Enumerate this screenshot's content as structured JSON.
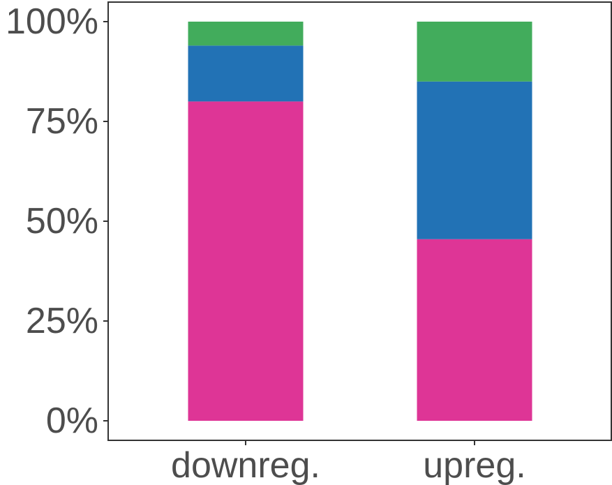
{
  "chart_data": {
    "type": "bar",
    "stacked": true,
    "title": "",
    "xlabel": "",
    "ylabel": "",
    "categories": [
      "downreg.",
      "upreg."
    ],
    "series": [
      {
        "color": "#de3596",
        "values": [
          80,
          45.5
        ]
      },
      {
        "color": "#2272b5",
        "values": [
          14,
          39.5
        ]
      },
      {
        "color": "#42ac5c",
        "values": [
          6,
          15
        ]
      }
    ],
    "ylim": [
      0,
      100
    ],
    "yticks": [
      0,
      25,
      50,
      75,
      100
    ],
    "ytick_labels": [
      "0%",
      "25%",
      "50%",
      "75%",
      "100%"
    ],
    "grid": false,
    "legend": "none"
  }
}
